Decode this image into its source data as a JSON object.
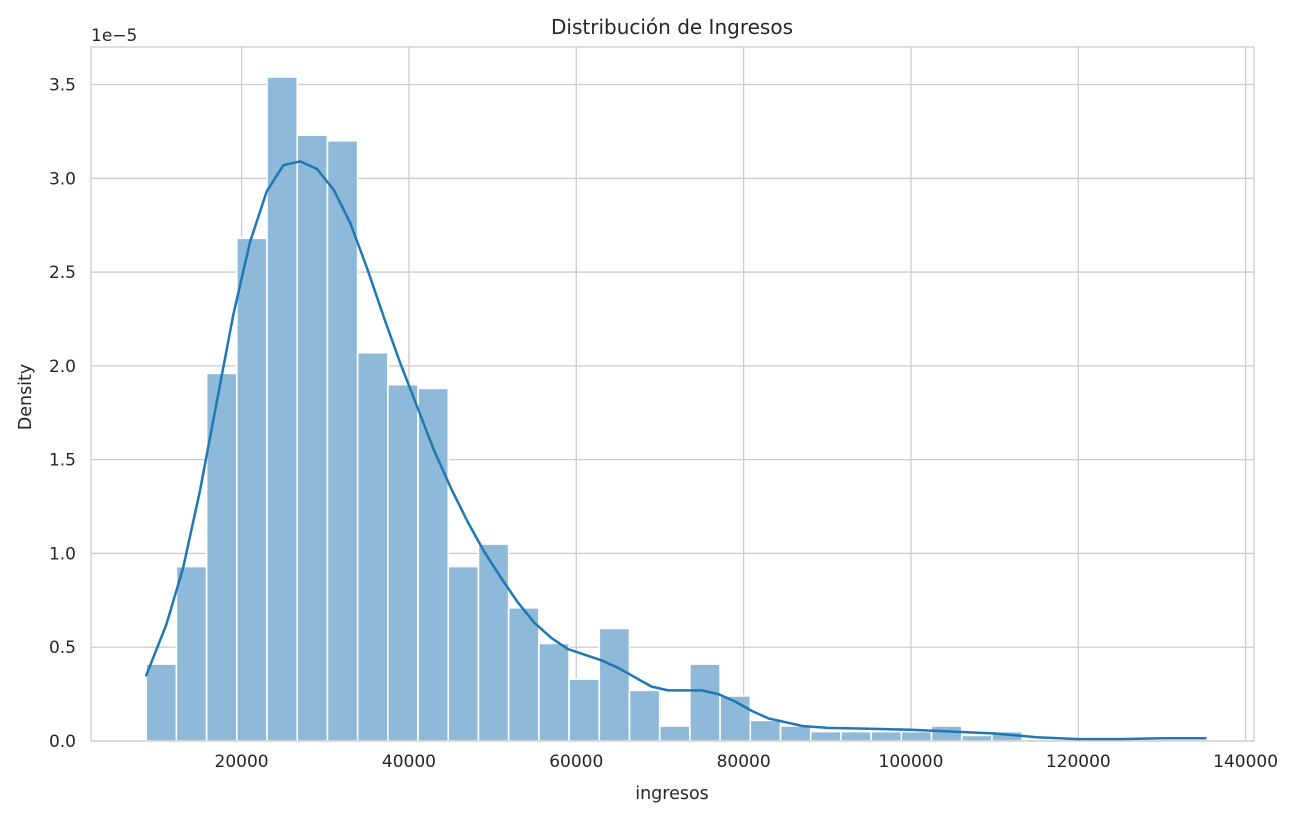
{
  "chart_data": {
    "type": "bar",
    "subtype": "histogram_with_kde",
    "title": "Distribución de Ingresos",
    "xlabel": "ingresos",
    "ylabel": "Density",
    "y_offset_label": "1e−5",
    "y_scale": 1e-05,
    "xlim": [
      2000,
      141000
    ],
    "ylim": [
      0,
      3.7
    ],
    "x_ticks": [
      20000,
      40000,
      60000,
      80000,
      100000,
      120000,
      140000
    ],
    "x_tick_labels": [
      "20000",
      "40000",
      "60000",
      "80000",
      "100000",
      "120000",
      "140000"
    ],
    "y_ticks": [
      0,
      0.5,
      1.0,
      1.5,
      2.0,
      2.5,
      3.0,
      3.5
    ],
    "y_tick_labels": [
      "0.0",
      "0.5",
      "1.0",
      "1.5",
      "2.0",
      "2.5",
      "3.0",
      "3.5"
    ],
    "grid": true,
    "bin_start": 8600,
    "bin_width": 3610,
    "values": [
      0.41,
      0.93,
      1.96,
      2.68,
      3.54,
      3.23,
      3.2,
      2.07,
      1.9,
      1.88,
      0.93,
      1.05,
      0.71,
      0.52,
      0.33,
      0.6,
      0.27,
      0.08,
      0.41,
      0.24,
      0.11,
      0.08,
      0.05,
      0.05,
      0.05,
      0.05,
      0.08,
      0.03,
      0.05,
      0.0,
      0.0,
      0.0,
      0.0,
      0.0,
      0.0
    ],
    "kde": {
      "x": [
        8600,
        11000,
        13000,
        15000,
        17000,
        19000,
        21000,
        23000,
        25000,
        27000,
        29000,
        31000,
        33000,
        35000,
        37000,
        39000,
        41000,
        43000,
        45000,
        47000,
        49000,
        51000,
        53000,
        55000,
        57000,
        59000,
        61000,
        63000,
        65000,
        67000,
        69000,
        71000,
        73000,
        75000,
        77000,
        79000,
        81000,
        83000,
        85000,
        87000,
        90000,
        95000,
        100000,
        105000,
        110000,
        115000,
        120000,
        125000,
        130000,
        135200
      ],
      "y": [
        0.35,
        0.62,
        0.92,
        1.33,
        1.8,
        2.27,
        2.66,
        2.93,
        3.07,
        3.09,
        3.05,
        2.94,
        2.76,
        2.52,
        2.26,
        2.01,
        1.78,
        1.55,
        1.35,
        1.17,
        1.01,
        0.87,
        0.74,
        0.63,
        0.55,
        0.49,
        0.46,
        0.43,
        0.39,
        0.34,
        0.29,
        0.27,
        0.27,
        0.27,
        0.25,
        0.21,
        0.16,
        0.12,
        0.1,
        0.08,
        0.07,
        0.065,
        0.06,
        0.05,
        0.04,
        0.02,
        0.01,
        0.01,
        0.015,
        0.015
      ]
    },
    "colors": {
      "bar_fill": "#8fb9d9",
      "bar_edge": "#ffffff",
      "kde_line": "#1f77b4",
      "grid": "#cccccc",
      "spine": "#cccccc",
      "text": "#262626"
    }
  }
}
